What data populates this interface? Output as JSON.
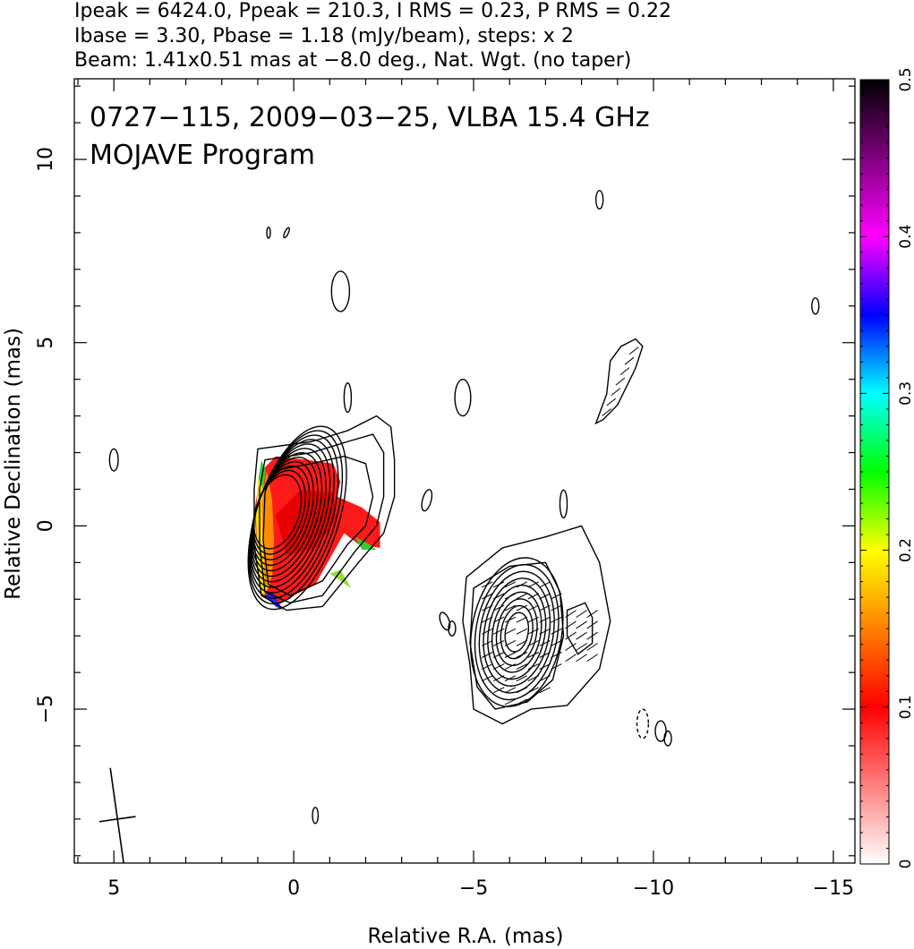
{
  "header": {
    "line1": "Ipeak = 6424.0, Ppeak = 210.3, I RMS = 0.23, P RMS = 0.22",
    "line2": "Ibase = 3.30, Pbase = 1.18 (mJy/beam), steps: x 2",
    "line3": "Beam: 1.41x0.51 mas at −8.0 deg., Nat. Wgt. (no taper)"
  },
  "chart_data": {
    "type": "heatmap",
    "title": "0727−115, 2009−03−25, VLBA 15.4 GHz",
    "subtitle": "MOJAVE Program",
    "xlabel": "Relative R.A. (mas)",
    "ylabel": "Relative Declination (mas)",
    "xlim": [
      6.1,
      -15.6
    ],
    "ylim": [
      -9.2,
      12.2
    ],
    "x_ticks": [
      5,
      0,
      -5,
      -10,
      -15
    ],
    "x_tick_labels": [
      "5",
      "0",
      "−5",
      "−10",
      "−15"
    ],
    "y_ticks": [
      -5,
      0,
      5,
      10
    ],
    "y_tick_labels": [
      "−5",
      "0",
      "5",
      "10"
    ],
    "colorbar": {
      "range": [
        0,
        0.5
      ],
      "ticks": [
        0,
        0.1,
        0.2,
        0.3,
        0.4,
        0.5
      ],
      "tick_labels": [
        "0",
        "0.1",
        "0.2",
        "0.3",
        "0.4",
        "0.5"
      ],
      "stops": [
        {
          "v": 0.0,
          "color": "#ffffff"
        },
        {
          "v": 0.1,
          "color": "#ff0000"
        },
        {
          "v": 0.15,
          "color": "#ff8000"
        },
        {
          "v": 0.2,
          "color": "#ffff00"
        },
        {
          "v": 0.25,
          "color": "#00ff00"
        },
        {
          "v": 0.3,
          "color": "#00ffff"
        },
        {
          "v": 0.35,
          "color": "#0000ff"
        },
        {
          "v": 0.4,
          "color": "#ff00ff"
        },
        {
          "v": 0.45,
          "color": "#800080"
        },
        {
          "v": 0.5,
          "color": "#000000"
        }
      ]
    },
    "core": {
      "ra": -0.1,
      "dec": 0.4,
      "contours": 12
    },
    "knot": {
      "ra": -6.2,
      "dec": -2.9,
      "contours": 9
    },
    "beam": {
      "ra": 4.9,
      "dec": -8.0,
      "major": 1.41,
      "minor": 0.51,
      "pa_deg": -8.0
    }
  }
}
